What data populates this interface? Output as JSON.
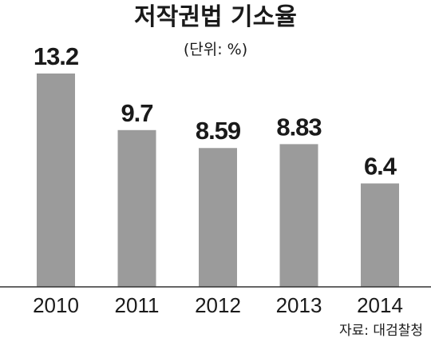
{
  "chart_data": {
    "type": "bar",
    "title": "저작권법 기소율",
    "unit": "(단위: %)",
    "categories": [
      "2010",
      "2011",
      "2012",
      "2013",
      "2014"
    ],
    "values": [
      13.2,
      9.7,
      8.59,
      8.83,
      6.4
    ],
    "value_labels": [
      "13.2",
      "9.7",
      "8.59",
      "8.83",
      "6.4"
    ],
    "ylim": [
      0,
      13.2
    ],
    "grid": false,
    "source": "자료: 대검찰청",
    "colors": {
      "bar": "#9b9b9b",
      "axis": "#333333",
      "text": "#1a1a1a"
    }
  }
}
